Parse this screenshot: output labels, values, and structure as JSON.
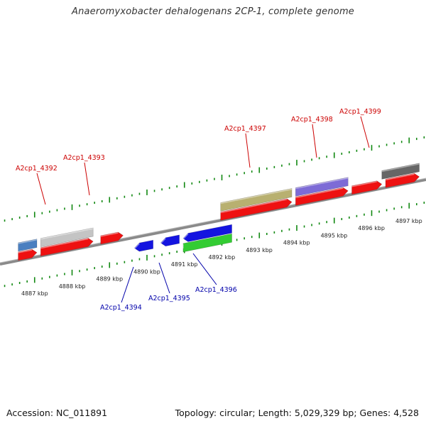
{
  "title": "Anaeromyxobacter dehalogenans 2CP-1, complete genome",
  "footer": {
    "accession": "Accession: NC_011891",
    "topology": "Topology: circular; Length: 5,029,329 bp; Genes: 4,528"
  },
  "scale": {
    "unit": "kbp",
    "ticks": [
      "4887 kbp",
      "4888 kbp",
      "4889 kbp",
      "4890 kbp",
      "4891 kbp",
      "4892 kbp",
      "4893 kbp",
      "4894 kbp",
      "4895 kbp",
      "4896 kbp",
      "4897 kbp"
    ]
  },
  "colors": {
    "backbone": "#888888",
    "forward_label": "#cc0000",
    "reverse_label": "#0000aa",
    "tick": "#118811"
  },
  "forward_labels": [
    "A2cp1_4392",
    "A2cp1_4393",
    "A2cp1_4397",
    "A2cp1_4398",
    "A2cp1_4399"
  ],
  "reverse_labels": [
    "A2cp1_4394",
    "A2cp1_4395",
    "A2cp1_4396"
  ],
  "genes": [
    {
      "strand": "forward",
      "start_kbp": 4886.5,
      "end_kbp": 4887.0,
      "color": "#4a7fc0"
    },
    {
      "strand": "forward",
      "start_kbp": 4887.1,
      "end_kbp": 4888.5,
      "color": "#c4c4c4"
    },
    {
      "strand": "forward",
      "start_kbp": 4891.9,
      "end_kbp": 4893.8,
      "color": "#b8b070"
    },
    {
      "strand": "forward",
      "start_kbp": 4893.9,
      "end_kbp": 4895.3,
      "color": "#7d6bd6"
    },
    {
      "strand": "forward",
      "start_kbp": 4896.2,
      "end_kbp": 4897.2,
      "color": "#666666"
    },
    {
      "strand": "forward-red",
      "start_kbp": 4886.5,
      "end_kbp": 4887.0,
      "color": "#ee1111"
    },
    {
      "strand": "forward-red",
      "start_kbp": 4887.1,
      "end_kbp": 4888.5,
      "color": "#ee1111"
    },
    {
      "strand": "forward-red",
      "start_kbp": 4888.7,
      "end_kbp": 4889.3,
      "color": "#ee1111"
    },
    {
      "strand": "forward-red",
      "start_kbp": 4891.9,
      "end_kbp": 4893.8,
      "color": "#ee1111"
    },
    {
      "strand": "forward-red",
      "start_kbp": 4893.9,
      "end_kbp": 4895.3,
      "color": "#ee1111"
    },
    {
      "strand": "forward-red",
      "start_kbp": 4895.4,
      "end_kbp": 4896.2,
      "color": "#ee1111"
    },
    {
      "strand": "forward-red",
      "start_kbp": 4896.3,
      "end_kbp": 4897.2,
      "color": "#ee1111"
    },
    {
      "strand": "reverse",
      "start_kbp": 4889.6,
      "end_kbp": 4890.1,
      "color": "#1414e0"
    },
    {
      "strand": "reverse",
      "start_kbp": 4890.3,
      "end_kbp": 4890.8,
      "color": "#1414e0"
    },
    {
      "strand": "reverse",
      "start_kbp": 4890.9,
      "end_kbp": 4892.2,
      "color": "#1414e0"
    },
    {
      "strand": "reverse-green",
      "start_kbp": 4890.9,
      "end_kbp": 4892.2,
      "color": "#33cc33"
    }
  ]
}
